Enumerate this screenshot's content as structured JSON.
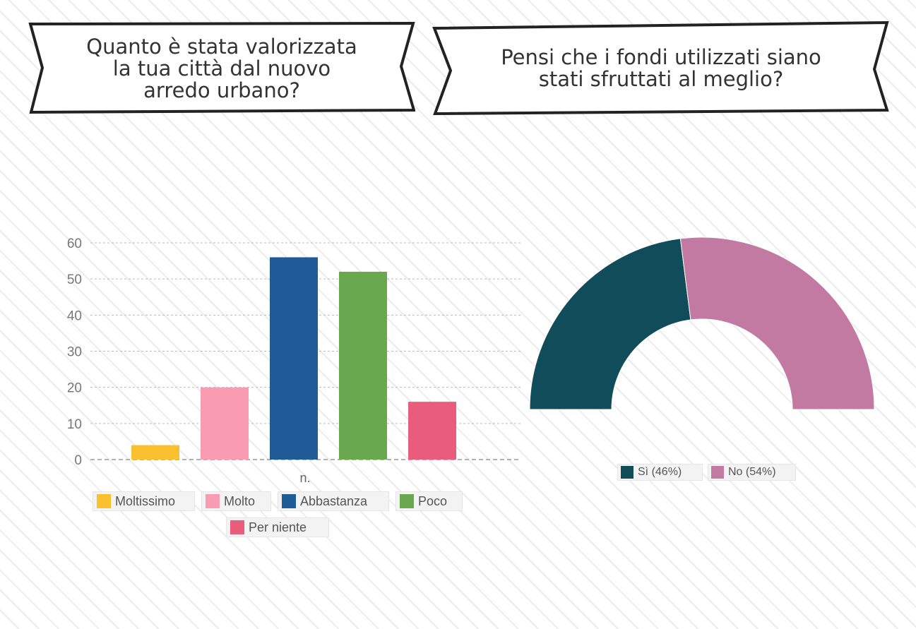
{
  "banners": {
    "left": {
      "line1": "Quanto è stata valorizzata",
      "line2": "la tua città dal nuovo",
      "line3": "arredo urbano?"
    },
    "right": {
      "line1": "Pensi che i fondi utilizzati siano",
      "line2": "stati sfruttati al meglio?"
    }
  },
  "chart_data": [
    {
      "type": "bar",
      "title": "",
      "categories": [
        "n."
      ],
      "xlabel": "",
      "ylabel": "",
      "ylim": [
        0,
        60
      ],
      "yticks": [
        0,
        10,
        20,
        30,
        40,
        50,
        60
      ],
      "grid": true,
      "legend_position": "bottom",
      "series": [
        {
          "name": "Moltissimo",
          "values": [
            4
          ],
          "color": "#fbc02d"
        },
        {
          "name": "Molto",
          "values": [
            20
          ],
          "color": "#f99cb1"
        },
        {
          "name": "Abbastanza",
          "values": [
            56
          ],
          "color": "#1e5b97"
        },
        {
          "name": "Poco",
          "values": [
            52
          ],
          "color": "#69a84f"
        },
        {
          "name": "Per niente",
          "values": [
            16
          ],
          "color": "#e95c7b"
        }
      ]
    },
    {
      "type": "pie",
      "style": "semi-donut",
      "title": "",
      "legend_position": "bottom",
      "slices": [
        {
          "label": "Sì (46%)",
          "value": 46,
          "color": "#114c5a"
        },
        {
          "label": "No (54%)",
          "value": 54,
          "color": "#c27aa2"
        }
      ]
    }
  ]
}
